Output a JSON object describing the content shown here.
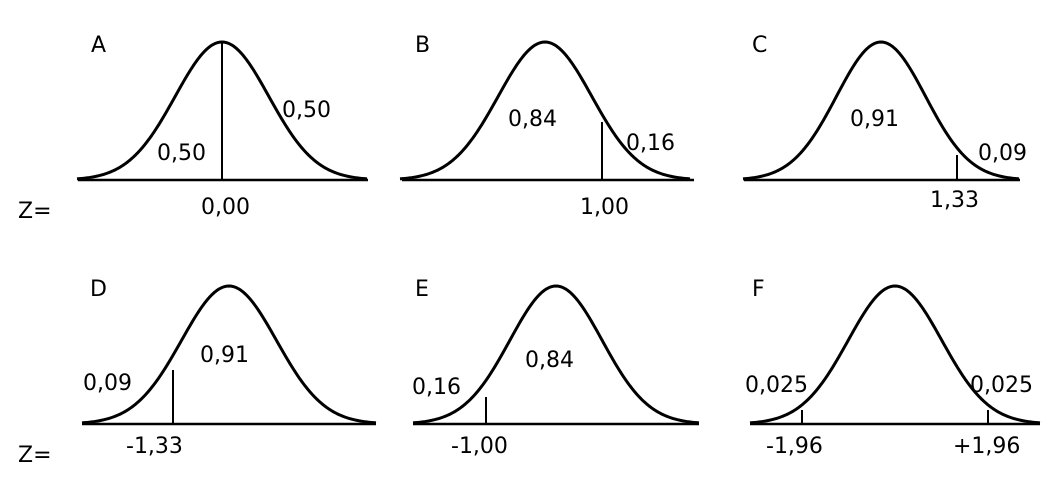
{
  "z_label": "Z=",
  "panels": [
    {
      "letter": "A",
      "z_values": [
        "0",
        "0"
      ],
      "z_text": "0,00",
      "areas": [
        "0,50",
        "0,50"
      ]
    },
    {
      "letter": "B",
      "z_values": [
        "1"
      ],
      "z_text": "1,00",
      "areas": [
        "0,84",
        "0,16"
      ]
    },
    {
      "letter": "C",
      "z_values": [
        "1.33"
      ],
      "z_text": "1,33",
      "areas": [
        "0,91",
        "0,09"
      ]
    },
    {
      "letter": "D",
      "z_values": [
        "-1.33"
      ],
      "z_text": "-1,33",
      "areas": [
        "0,09",
        "0,91"
      ]
    },
    {
      "letter": "E",
      "z_values": [
        "-1"
      ],
      "z_text": "-1,00",
      "areas": [
        "0,16",
        "0,84"
      ]
    },
    {
      "letter": "F",
      "z_values": [
        "-1.96",
        "1.96"
      ],
      "z_text_left": "-1,96",
      "z_text_right": "+1,96",
      "areas": [
        "0,025",
        "0,025"
      ]
    }
  ]
}
